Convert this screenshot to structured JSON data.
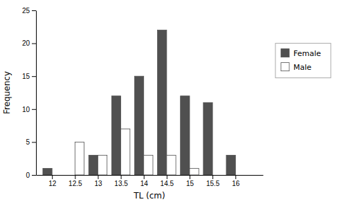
{
  "chart_data": {
    "type": "bar",
    "x": [
      12,
      12.5,
      13,
      13.5,
      14,
      14.5,
      15,
      15.5,
      16
    ],
    "series": [
      {
        "name": "Female",
        "color": "#505050",
        "values": [
          1,
          0,
          3,
          12,
          15,
          22,
          12,
          11,
          3
        ]
      },
      {
        "name": "Male",
        "color": "#ffffff",
        "values": [
          0,
          5,
          3,
          7,
          3,
          3,
          1,
          0,
          0
        ]
      }
    ],
    "xlabel": "TL (cm)",
    "ylabel": "Frequency",
    "xlim": [
      11.65,
      16.6
    ],
    "xticks": [
      12,
      12.5,
      13,
      13.5,
      14,
      14.5,
      15,
      15.5,
      16
    ],
    "ylim": [
      0,
      25
    ],
    "yticks": [
      0,
      5,
      10,
      15,
      20,
      25
    ],
    "legend": "right"
  }
}
